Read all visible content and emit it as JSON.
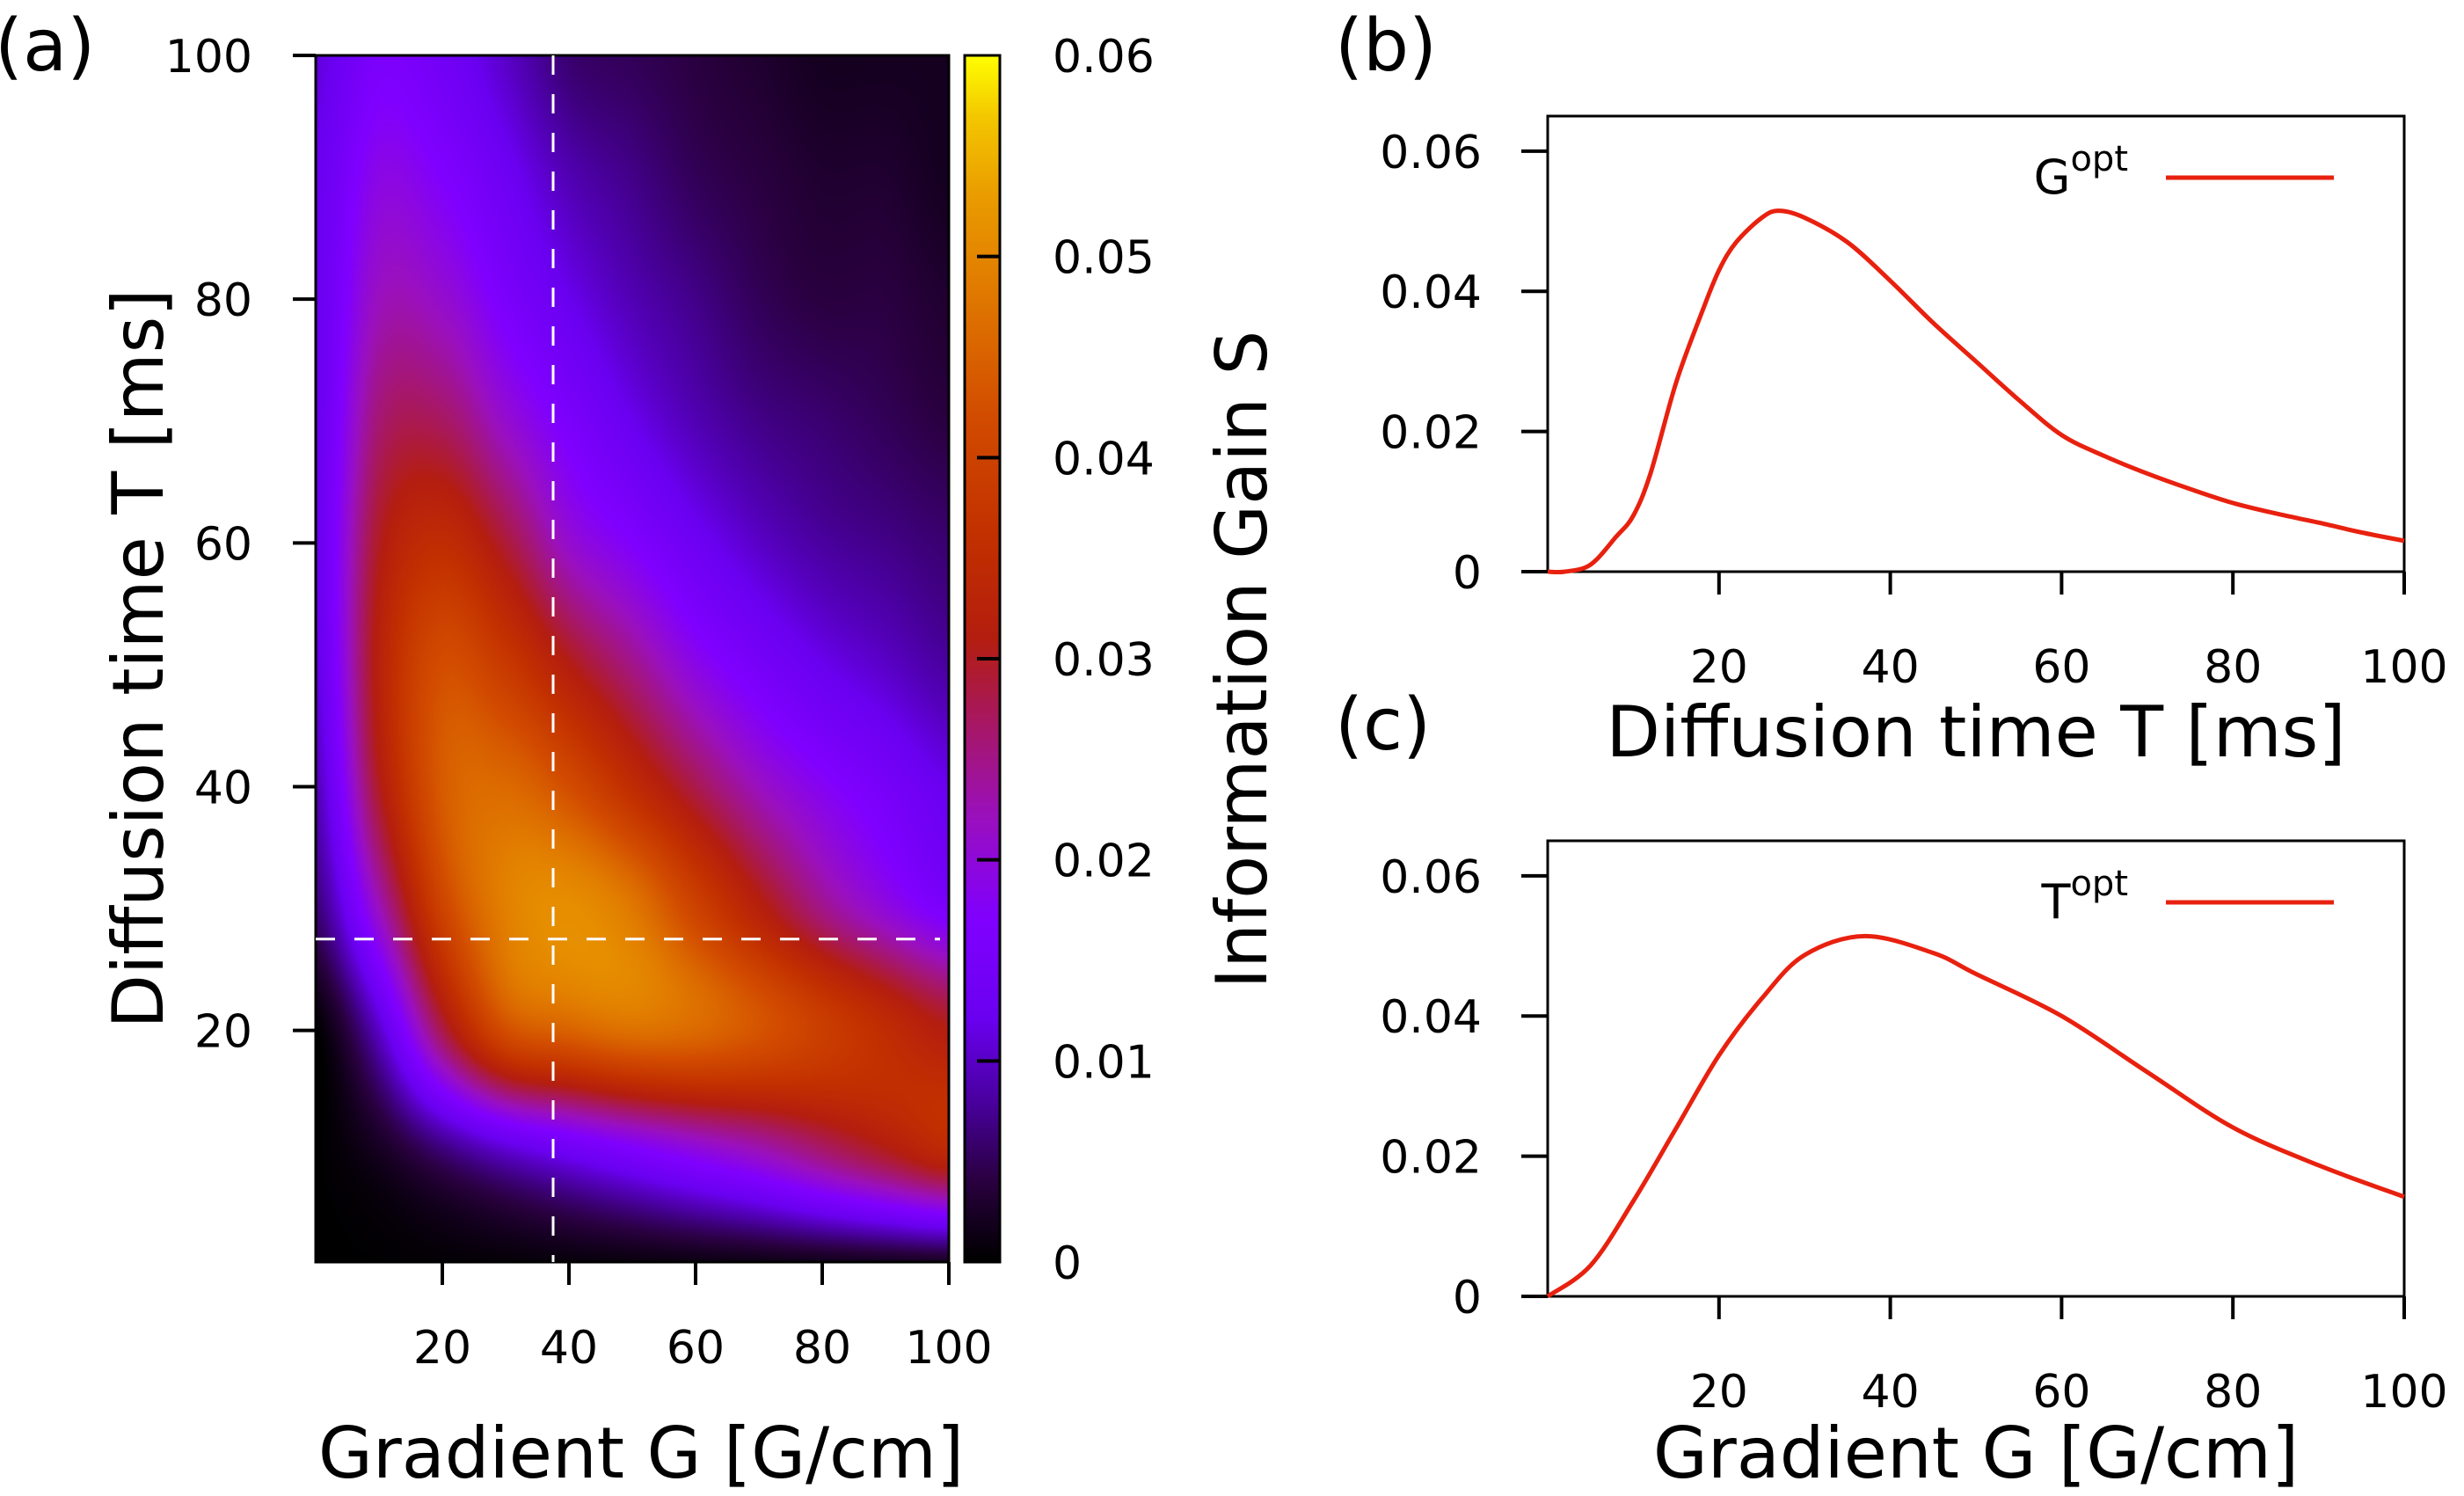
{
  "chart_data": [
    {
      "type": "heatmap",
      "panel_label": "(a)",
      "xlabel": "Gradient G [G/cm]",
      "ylabel": "Diffusion time T [ms]",
      "colorbar_label": "Information Gain S",
      "xlim": [
        0,
        100
      ],
      "ylim": [
        1,
        100
      ],
      "zlim": [
        0,
        0.06
      ],
      "xticks": [
        "20",
        "40",
        "60",
        "80",
        "100"
      ],
      "yticks": [
        "20",
        "40",
        "60",
        "80",
        "100"
      ],
      "colorbar_ticks": [
        "0",
        "0.01",
        "0.02",
        "0.03",
        "0.04",
        "0.05",
        "0.06"
      ],
      "x": [
        0,
        10,
        20,
        30,
        40,
        50,
        60,
        70,
        80,
        90,
        100
      ],
      "y": [
        0,
        10,
        20,
        30,
        40,
        50,
        60,
        70,
        80,
        90,
        100
      ],
      "z": [
        [
          0,
          0,
          0,
          0,
          0,
          0,
          0,
          0,
          0,
          0,
          0
        ],
        [
          0,
          0.002,
          0.006,
          0.01,
          0.013,
          0.016,
          0.019,
          0.022,
          0.026,
          0.03,
          0.034
        ],
        [
          0,
          0.01,
          0.028,
          0.042,
          0.045,
          0.047,
          0.046,
          0.043,
          0.039,
          0.035,
          0.031
        ],
        [
          0.006,
          0.022,
          0.04,
          0.049,
          0.051,
          0.048,
          0.04,
          0.032,
          0.025,
          0.02,
          0.016
        ],
        [
          0.009,
          0.03,
          0.044,
          0.046,
          0.042,
          0.035,
          0.028,
          0.022,
          0.018,
          0.015,
          0.012
        ],
        [
          0.011,
          0.032,
          0.042,
          0.038,
          0.031,
          0.025,
          0.019,
          0.015,
          0.012,
          0.01,
          0.008
        ],
        [
          0.012,
          0.03,
          0.035,
          0.029,
          0.021,
          0.017,
          0.013,
          0.01,
          0.008,
          0.007,
          0.006
        ],
        [
          0.012,
          0.026,
          0.027,
          0.021,
          0.016,
          0.012,
          0.009,
          0.007,
          0.006,
          0.005,
          0.004
        ],
        [
          0.012,
          0.022,
          0.021,
          0.016,
          0.012,
          0.009,
          0.007,
          0.005,
          0.004,
          0.004,
          0.003
        ],
        [
          0.012,
          0.019,
          0.017,
          0.013,
          0.009,
          0.007,
          0.005,
          0.004,
          0.003,
          0.003,
          0.002
        ],
        [
          0.011,
          0.016,
          0.014,
          0.01,
          0.006,
          0.005,
          0.004,
          0.003,
          0.002,
          0.002,
          0.002
        ]
      ],
      "optimum_markers": {
        "G": 37.5,
        "T": 27.5,
        "line_style": "dashed",
        "color": "#ffffff"
      },
      "colormap": [
        [
          0,
          "#000000"
        ],
        [
          0.004,
          "#2a0040"
        ],
        [
          0.008,
          "#4a00a0"
        ],
        [
          0.012,
          "#6a00f0"
        ],
        [
          0.017,
          "#8000ff"
        ],
        [
          0.022,
          "#9a10c0"
        ],
        [
          0.027,
          "#a81860"
        ],
        [
          0.031,
          "#b41e10"
        ],
        [
          0.036,
          "#c23000"
        ],
        [
          0.042,
          "#d24c00"
        ],
        [
          0.048,
          "#e07800"
        ],
        [
          0.053,
          "#ea9c00"
        ],
        [
          0.057,
          "#f4c800"
        ],
        [
          0.06,
          "#ffff00"
        ]
      ]
    },
    {
      "type": "line",
      "panel_label": "(b)",
      "xlabel": "Diffusion time T [ms]",
      "ylabel": "",
      "xlim": [
        0,
        100
      ],
      "ylim": [
        0,
        0.065
      ],
      "xticks": [
        "20",
        "40",
        "60",
        "80",
        "100"
      ],
      "yticks": [
        "0",
        "0.02",
        "0.04",
        "0.06"
      ],
      "legend": "top-right",
      "series": [
        {
          "name_base": "G",
          "name_sup": "opt",
          "color": "#e8210f",
          "x": [
            0,
            2,
            5,
            8,
            10,
            12,
            15,
            18,
            20,
            22,
            25,
            27,
            30,
            35,
            40,
            45,
            50,
            55,
            60,
            65,
            70,
            75,
            80,
            85,
            90,
            95,
            100
          ],
          "y": [
            0,
            0,
            0.001,
            0.005,
            0.008,
            0.014,
            0.027,
            0.037,
            0.043,
            0.047,
            0.0505,
            0.0515,
            0.0505,
            0.047,
            0.0415,
            0.0355,
            0.03,
            0.0245,
            0.0195,
            0.0165,
            0.014,
            0.0118,
            0.0098,
            0.0083,
            0.007,
            0.0056,
            0.0044
          ]
        }
      ]
    },
    {
      "type": "line",
      "panel_label": "(c)",
      "xlabel": "Gradient G [G/cm]",
      "ylabel": "",
      "xlim": [
        0,
        100
      ],
      "ylim": [
        0,
        0.065
      ],
      "xticks": [
        "20",
        "40",
        "60",
        "80",
        "100"
      ],
      "yticks": [
        "0",
        "0.02",
        "0.04",
        "0.06"
      ],
      "legend": "top-right",
      "series": [
        {
          "name_base": "T",
          "name_sup": "opt",
          "color": "#e8210f",
          "x": [
            0,
            5,
            10,
            15,
            20,
            25,
            30,
            37,
            45,
            50,
            60,
            70,
            80,
            90,
            100
          ],
          "y": [
            0,
            0.0044,
            0.0136,
            0.024,
            0.0344,
            0.0425,
            0.0487,
            0.0514,
            0.049,
            0.046,
            0.04,
            0.032,
            0.0241,
            0.0187,
            0.0142
          ]
        }
      ]
    }
  ]
}
